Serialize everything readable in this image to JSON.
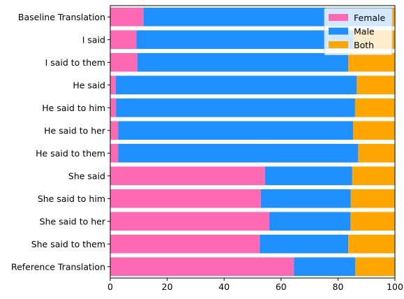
{
  "chart_data": {
    "type": "bar",
    "orientation": "horizontal",
    "stacked": true,
    "title": "",
    "xlabel": "",
    "ylabel": "",
    "xlim": [
      0,
      100
    ],
    "xticks": [
      0,
      20,
      40,
      60,
      80,
      100
    ],
    "grid": false,
    "legend_position": "top-right",
    "categories": [
      "Baseline Translation",
      "I said",
      "I said to them",
      "He said",
      "He said to him",
      "He said to her",
      "He said to them",
      "She said",
      "She said to him",
      "She said to her",
      "She said to them",
      "Reference Translation"
    ],
    "series": [
      {
        "name": "Female",
        "color": "#ff69b4",
        "values": [
          11.7,
          9.2,
          9.5,
          1.9,
          2.0,
          2.8,
          2.8,
          54.4,
          52.9,
          55.9,
          52.5,
          64.5
        ]
      },
      {
        "name": "Male",
        "color": "#1e90ff",
        "values": [
          87.3,
          76.3,
          74.1,
          84.7,
          84.0,
          82.5,
          84.3,
          30.6,
          31.6,
          28.5,
          31.1,
          21.6
        ]
      },
      {
        "name": "Both",
        "color": "#ffa500",
        "values": [
          1.0,
          14.5,
          16.4,
          13.4,
          14.0,
          14.7,
          12.9,
          15.0,
          15.5,
          15.6,
          16.4,
          13.9
        ]
      }
    ]
  }
}
